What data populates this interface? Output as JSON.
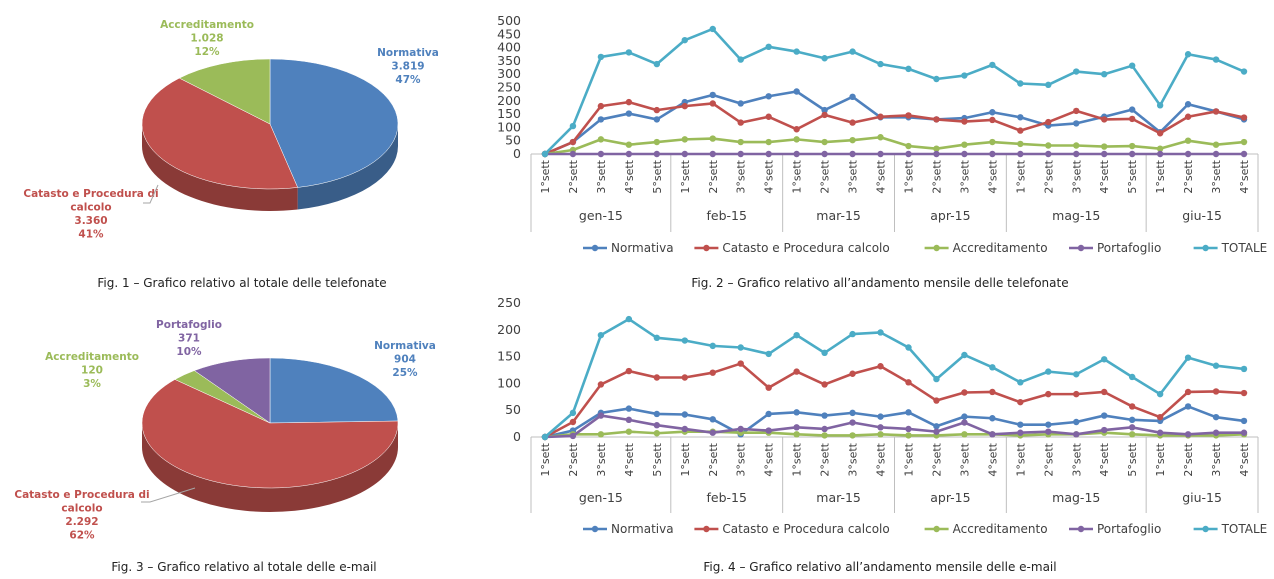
{
  "captions": {
    "fig1": "Fig. 1 – Grafico relativo al totale delle telefonate",
    "fig2": "Fig. 2 – Grafico relativo all’andamento mensile delle telefonate",
    "fig3": "Fig. 3 – Grafico relativo al totale delle e-mail",
    "fig4": "Fig. 4 – Grafico relativo all’andamento mensile delle e-mail"
  },
  "chart_data": [
    {
      "id": "fig1",
      "type": "pie",
      "title": "",
      "slices": [
        {
          "name": "Normativa",
          "value": 3819,
          "value_label": "3.819",
          "percent": "47%",
          "color": "#4F81BD"
        },
        {
          "name": "Catasto e Procedura di calcolo",
          "value": 3360,
          "value_label": "3.360",
          "percent": "41%",
          "color": "#C0504D"
        },
        {
          "name": "Accreditamento",
          "value": 1028,
          "value_label": "1.028",
          "percent": "12%",
          "color": "#9BBB59"
        }
      ]
    },
    {
      "id": "fig2",
      "type": "line",
      "title": "",
      "xlabel": "",
      "ylabel": "",
      "ylim": [
        0,
        500
      ],
      "yticks": [
        0,
        50,
        100,
        150,
        200,
        250,
        300,
        350,
        400,
        450,
        500
      ],
      "categories": [
        "1°sett",
        "2°sett",
        "3°sett",
        "4°sett",
        "5°sett",
        "1°sett",
        "2°sett",
        "3°sett",
        "4°sett",
        "1°sett",
        "2°sett",
        "3°sett",
        "4°sett",
        "1°sett",
        "2°sett",
        "3°sett",
        "4°sett",
        "1°sett",
        "2°sett",
        "3°sett",
        "4°sett",
        "5°sett",
        "1°sett",
        "2°sett",
        "3°sett",
        "4°sett"
      ],
      "months": [
        {
          "label": "gen-15",
          "count": 5
        },
        {
          "label": "feb-15",
          "count": 4
        },
        {
          "label": "mar-15",
          "count": 4
        },
        {
          "label": "apr-15",
          "count": 4
        },
        {
          "label": "mag-15",
          "count": 5
        },
        {
          "label": "giu-15",
          "count": 4
        }
      ],
      "legend_position": "bottom",
      "grid": false,
      "series": [
        {
          "name": "Normativa",
          "color": "#4F81BD",
          "values": [
            0,
            45,
            130,
            152,
            130,
            195,
            222,
            190,
            217,
            235,
            165,
            215,
            138,
            138,
            130,
            135,
            157,
            138,
            107,
            115,
            140,
            167,
            82,
            187,
            160,
            130
          ]
        },
        {
          "name": "Catasto e Procedura calcolo",
          "color": "#C0504D",
          "values": [
            0,
            45,
            180,
            195,
            165,
            180,
            190,
            118,
            140,
            93,
            147,
            118,
            140,
            145,
            130,
            122,
            128,
            88,
            120,
            162,
            130,
            132,
            78,
            140,
            160,
            137
          ]
        },
        {
          "name": "Accreditamento",
          "color": "#9BBB59",
          "values": [
            0,
            15,
            55,
            35,
            45,
            55,
            58,
            45,
            45,
            55,
            45,
            52,
            63,
            30,
            20,
            35,
            45,
            38,
            32,
            32,
            28,
            30,
            20,
            50,
            35,
            45
          ]
        },
        {
          "name": "Portafoglio",
          "color": "#8064A2",
          "values": [
            0,
            0,
            0,
            0,
            0,
            0,
            0,
            0,
            0,
            0,
            0,
            0,
            0,
            0,
            0,
            0,
            0,
            0,
            0,
            0,
            0,
            0,
            0,
            0,
            0,
            0
          ]
        },
        {
          "name": "TOTALE",
          "color": "#4BACC6",
          "values": [
            0,
            105,
            365,
            382,
            338,
            428,
            470,
            355,
            403,
            385,
            360,
            385,
            338,
            320,
            282,
            295,
            335,
            265,
            260,
            310,
            300,
            332,
            183,
            375,
            355,
            310
          ]
        }
      ]
    },
    {
      "id": "fig3",
      "type": "pie",
      "title": "",
      "slices": [
        {
          "name": "Normativa",
          "value": 904,
          "value_label": "904",
          "percent": "25%",
          "color": "#4F81BD"
        },
        {
          "name": "Catasto e Procedura di calcolo",
          "value": 2292,
          "value_label": "2.292",
          "percent": "62%",
          "color": "#C0504D"
        },
        {
          "name": "Accreditamento",
          "value": 120,
          "value_label": "120",
          "percent": "3%",
          "color": "#9BBB59"
        },
        {
          "name": "Portafoglio",
          "value": 371,
          "value_label": "371",
          "percent": "10%",
          "color": "#8064A2"
        }
      ]
    },
    {
      "id": "fig4",
      "type": "line",
      "title": "",
      "xlabel": "",
      "ylabel": "",
      "ylim": [
        0,
        250
      ],
      "yticks": [
        0,
        50,
        100,
        150,
        200,
        250
      ],
      "categories": [
        "1°sett",
        "2°sett",
        "3°sett",
        "4°sett",
        "5°sett",
        "1°sett",
        "2°sett",
        "3°sett",
        "4°sett",
        "1°sett",
        "2°sett",
        "3°sett",
        "4°sett",
        "1°sett",
        "2°sett",
        "3°sett",
        "4°sett",
        "1°sett",
        "2°sett",
        "3°sett",
        "4°sett",
        "5°sett",
        "1°sett",
        "2°sett",
        "3°sett",
        "4°sett"
      ],
      "months": [
        {
          "label": "gen-15",
          "count": 5
        },
        {
          "label": "feb-15",
          "count": 4
        },
        {
          "label": "mar-15",
          "count": 4
        },
        {
          "label": "apr-15",
          "count": 4
        },
        {
          "label": "mag-15",
          "count": 5
        },
        {
          "label": "giu-15",
          "count": 4
        }
      ],
      "legend_position": "bottom",
      "grid": false,
      "series": [
        {
          "name": "Normativa",
          "color": "#4F81BD",
          "values": [
            0,
            12,
            45,
            53,
            43,
            42,
            33,
            5,
            43,
            46,
            40,
            45,
            38,
            46,
            20,
            38,
            35,
            23,
            23,
            28,
            40,
            32,
            30,
            57,
            37,
            30
          ]
        },
        {
          "name": "Catasto e Procedura calcolo",
          "color": "#C0504D",
          "values": [
            0,
            28,
            98,
            123,
            111,
            111,
            120,
            137,
            92,
            122,
            98,
            118,
            132,
            102,
            68,
            83,
            84,
            65,
            80,
            80,
            84,
            57,
            37,
            84,
            85,
            82
          ]
        },
        {
          "name": "Accreditamento",
          "color": "#9BBB59",
          "values": [
            0,
            5,
            5,
            10,
            7,
            10,
            10,
            8,
            8,
            5,
            3,
            3,
            5,
            3,
            3,
            5,
            5,
            3,
            5,
            5,
            8,
            5,
            3,
            3,
            3,
            5
          ]
        },
        {
          "name": "Portafoglio",
          "color": "#8064A2",
          "values": [
            0,
            2,
            40,
            32,
            22,
            15,
            8,
            15,
            12,
            18,
            15,
            27,
            18,
            15,
            10,
            27,
            5,
            8,
            10,
            5,
            13,
            18,
            8,
            5,
            8,
            8
          ]
        },
        {
          "name": "TOTALE",
          "color": "#4BACC6",
          "values": [
            0,
            45,
            190,
            220,
            185,
            180,
            170,
            167,
            155,
            190,
            157,
            192,
            195,
            167,
            108,
            153,
            130,
            102,
            122,
            117,
            145,
            112,
            80,
            148,
            133,
            127
          ]
        }
      ]
    }
  ]
}
